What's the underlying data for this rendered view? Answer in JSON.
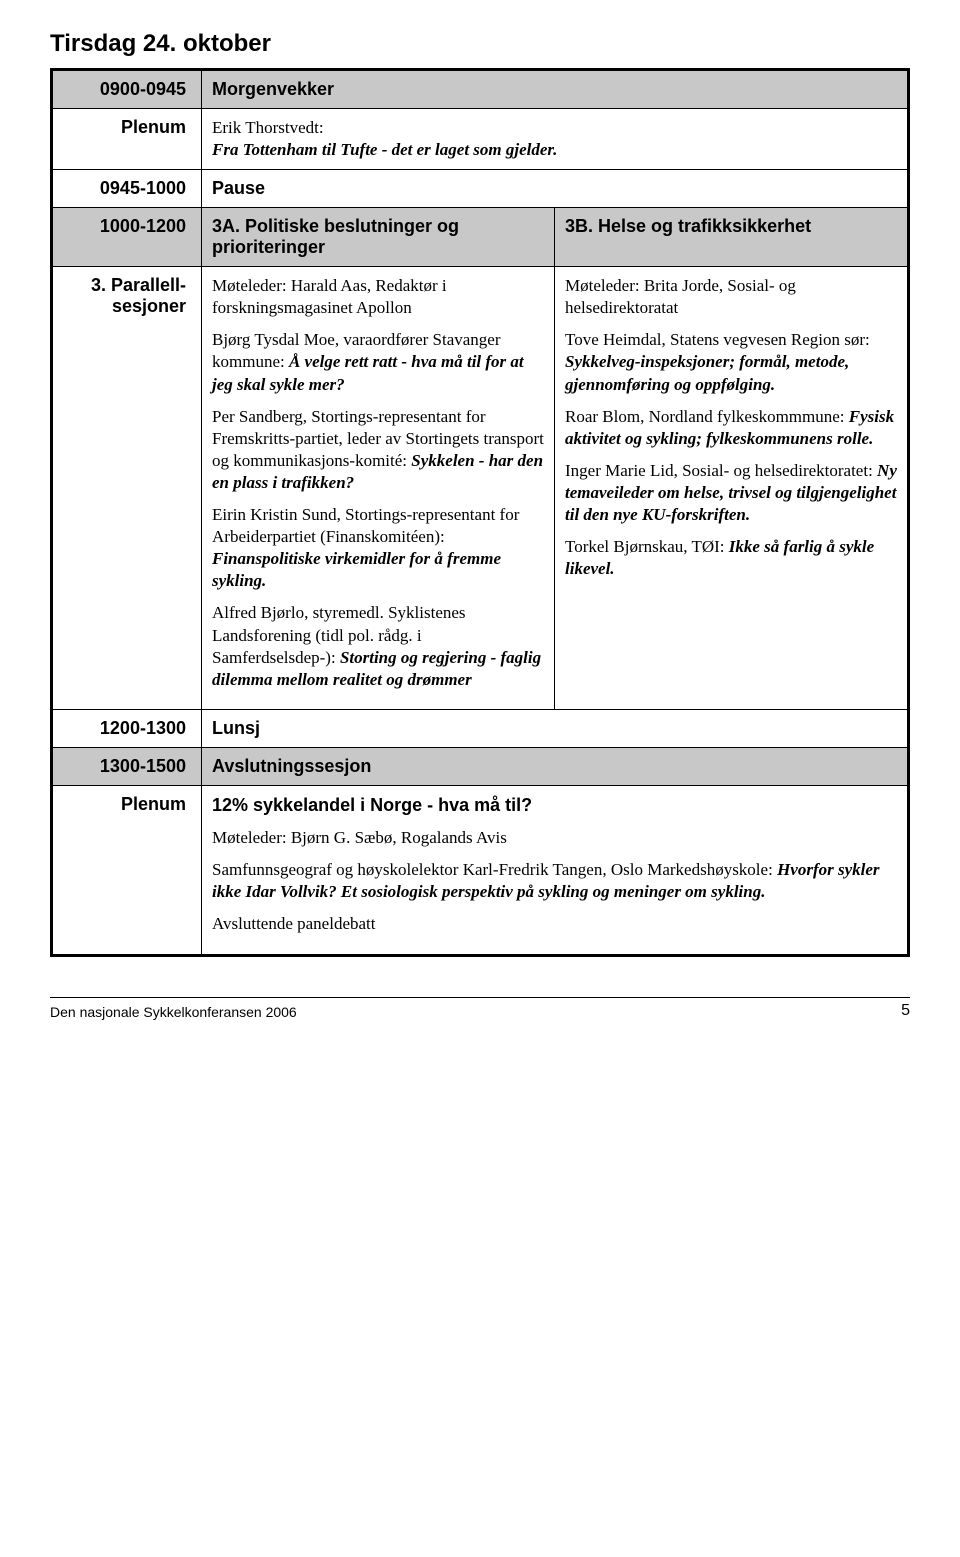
{
  "page": {
    "day_title": "Tirsdag 24. oktober",
    "footer_left": "Den nasjonale Sykkelkonferansen 2006",
    "footer_page": "5"
  },
  "rows": {
    "r1_time": "0900-0945",
    "r1_title": "Morgenvekker",
    "r2_time": "Plenum",
    "r2_line1": "Erik Thorstvedt:",
    "r2_line2": "Fra Tottenham til Tufte - det er laget som gjelder.",
    "r3_time": "0945-1000",
    "r3_title": "Pause",
    "r4_time": "1000-1200",
    "r4_left_title": "3A. Politiske beslutninger og prioriteringer",
    "r4_right_title": "3B. Helse og trafikksikkerhet",
    "r5_time": "3. Parallell-sesjoner",
    "r5_left": {
      "p1": "Møteleder: Harald Aas, Redaktør i forskningsmagasinet Apollon",
      "p2a": "Bjørg Tysdal Moe, varaordfører Stavanger kommune: ",
      "p2b": "Å velge rett ratt - hva må til for at jeg skal sykle mer?",
      "p3a": "Per Sandberg, Stortings-representant for Fremskritts-partiet, leder av Stortingets transport og kommunikasjons-komité: ",
      "p3b": "Sykkelen - har den en plass i trafikken?",
      "p4a": "Eirin Kristin Sund, Stortings-representant for Arbeiderpartiet (Finanskomitéen): ",
      "p4b": "Finanspolitiske virkemidler for å fremme sykling.",
      "p5a": "Alfred Bjørlo, styremedl. Syklistenes Landsforening (tidl pol. rådg. i Samferdselsdep-): ",
      "p5b": "Storting og regjering - faglig dilemma mellom realitet og drømmer"
    },
    "r5_right": {
      "p1": "Møteleder: Brita Jorde, Sosial- og helsedirektoratat",
      "p2a": "Tove Heimdal, Statens vegvesen Region sør: ",
      "p2b": "Sykkelveg-inspeksjoner; formål, metode, gjennomføring og oppfølging.",
      "p3a": "Roar Blom, Nordland fylkeskommmune: ",
      "p3b": "Fysisk aktivitet og sykling; fylkeskommunens rolle.",
      "p4a": "Inger Marie Lid, Sosial- og helsedirektoratet: ",
      "p4b": "Ny temaveileder om helse, trivsel og tilgjengelighet til den nye KU-forskriften.",
      "p5a": "Torkel Bjørnskau, TØI: ",
      "p5b": "Ikke så farlig å sykle likevel."
    },
    "r6_time": "1200-1300",
    "r6_title": "Lunsj",
    "r7_time": "1300-1500",
    "r7_title": "Avslutningssesjon",
    "r8_time": "Plenum",
    "r8": {
      "p1": "12% sykkelandel i Norge - hva må til?",
      "p2": "Møteleder: Bjørn G. Sæbø, Rogalands Avis",
      "p3a": "Samfunnsgeograf og høyskolelektor Karl-Fredrik Tangen, Oslo Markedshøyskole: ",
      "p3b": "Hvorfor sykler ikke Idar Vollvik? Et sosiologisk perspektiv på sykling og meninger om sykling.",
      "p4": "Avsluttende paneldebatt"
    }
  },
  "style": {
    "shaded_bg": "#c8c8c8",
    "border_color": "#000000",
    "body_font_size": 17,
    "title_font_size": 18,
    "day_title_font_size": 24
  }
}
